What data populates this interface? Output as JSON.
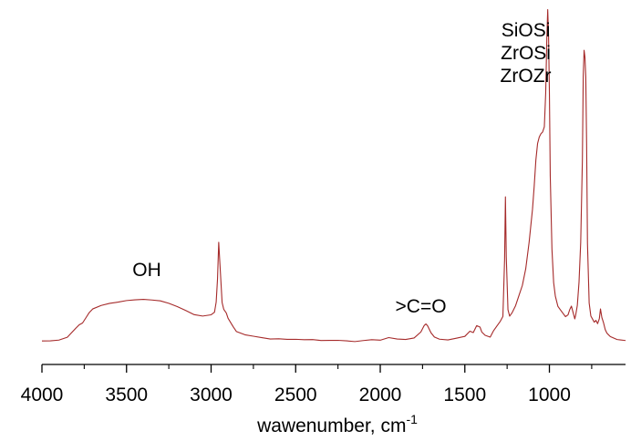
{
  "chart_data": {
    "type": "line",
    "title": "",
    "xlabel": "wawenumber, cm",
    "xlabel_superscript": "-1",
    "ylabel": "",
    "xlim": [
      4000,
      550
    ],
    "x_reversed": true,
    "ylim": [
      0,
      100
    ],
    "y_axis_visible": false,
    "grid": false,
    "x_ticks": [
      4000,
      3500,
      3000,
      2500,
      2000,
      1500,
      1000
    ],
    "x_tick_labels": [
      "4000",
      "3500",
      "3000",
      "2500",
      "2000",
      "1500",
      "1000"
    ],
    "series": [
      {
        "color": "#a52a2a",
        "x": [
          4000,
          3950,
          3900,
          3850,
          3800,
          3780,
          3760,
          3740,
          3720,
          3700,
          3650,
          3600,
          3550,
          3500,
          3450,
          3400,
          3350,
          3300,
          3250,
          3200,
          3150,
          3100,
          3050,
          3000,
          2980,
          2970,
          2962,
          2955,
          2945,
          2935,
          2925,
          2910,
          2900,
          2870,
          2850,
          2800,
          2750,
          2700,
          2650,
          2600,
          2550,
          2500,
          2450,
          2400,
          2350,
          2300,
          2250,
          2200,
          2150,
          2100,
          2050,
          2000,
          1950,
          1900,
          1850,
          1800,
          1760,
          1740,
          1730,
          1720,
          1700,
          1680,
          1650,
          1600,
          1550,
          1500,
          1470,
          1450,
          1430,
          1410,
          1400,
          1380,
          1350,
          1330,
          1310,
          1290,
          1275,
          1265,
          1260,
          1255,
          1245,
          1235,
          1220,
          1200,
          1180,
          1160,
          1140,
          1120,
          1100,
          1090,
          1080,
          1070,
          1060,
          1050,
          1040,
          1030,
          1022,
          1015,
          1010,
          1005,
          1000,
          995,
          985,
          975,
          965,
          950,
          935,
          920,
          905,
          890,
          880,
          870,
          860,
          850,
          845,
          835,
          825,
          815,
          805,
          800,
          795,
          790,
          785,
          780,
          775,
          765,
          755,
          745,
          735,
          725,
          715,
          705,
          698,
          690,
          680,
          670,
          660,
          650,
          640,
          620,
          600,
          580,
          560,
          550
        ],
        "y": [
          0.5,
          0.6,
          0.9,
          1.8,
          4.5,
          5.5,
          6.0,
          7.5,
          9.0,
          10.0,
          11.0,
          11.6,
          12.0,
          12.5,
          12.8,
          13.0,
          12.9,
          12.7,
          12.0,
          11.0,
          9.8,
          8.5,
          8.0,
          8.3,
          9.0,
          12.0,
          19.0,
          30.0,
          21.0,
          12.0,
          10.0,
          9.0,
          7.5,
          5.0,
          3.5,
          2.5,
          2.0,
          1.5,
          1.0,
          1.0,
          0.8,
          0.8,
          0.7,
          0.8,
          0.6,
          0.7,
          0.8,
          0.7,
          0.5,
          0.8,
          1.0,
          0.8,
          1.5,
          1.0,
          0.8,
          1.2,
          3.0,
          5.0,
          5.5,
          5.0,
          3.0,
          1.8,
          1.2,
          1.0,
          1.5,
          2.0,
          3.5,
          3.0,
          5.0,
          4.5,
          3.0,
          2.0,
          1.5,
          3.5,
          5.0,
          6.5,
          8.0,
          25.0,
          44.0,
          26.0,
          10.0,
          8.0,
          9.0,
          11.0,
          14.0,
          17.0,
          22.0,
          30.0,
          40.0,
          47.0,
          55.0,
          60.0,
          62.0,
          63.0,
          63.5,
          65.0,
          75.0,
          92.0,
          100.0,
          92.0,
          75.0,
          50.0,
          28.0,
          18.0,
          14.0,
          11.0,
          10.0,
          9.0,
          8.0,
          8.5,
          10.0,
          11.0,
          9.0,
          7.0,
          8.0,
          11.0,
          18.0,
          30.0,
          55.0,
          80.0,
          88.0,
          86.0,
          80.0,
          60.0,
          30.0,
          12.0,
          8.0,
          7.0,
          6.0,
          6.5,
          5.5,
          7.0,
          10.0,
          7.5,
          6.0,
          4.0,
          3.0,
          2.5,
          2.0,
          1.5,
          1.0,
          0.8,
          0.6,
          0.5
        ]
      }
    ],
    "annotations": [
      {
        "text": "OH",
        "x": 3380,
        "y": 20
      },
      {
        "text": ">C=O",
        "x": 1760,
        "y": 9
      },
      {
        "lines": [
          "SiOSi",
          "ZrOSi",
          "ZrOZr"
        ],
        "x": 1140,
        "y": 92
      }
    ]
  }
}
